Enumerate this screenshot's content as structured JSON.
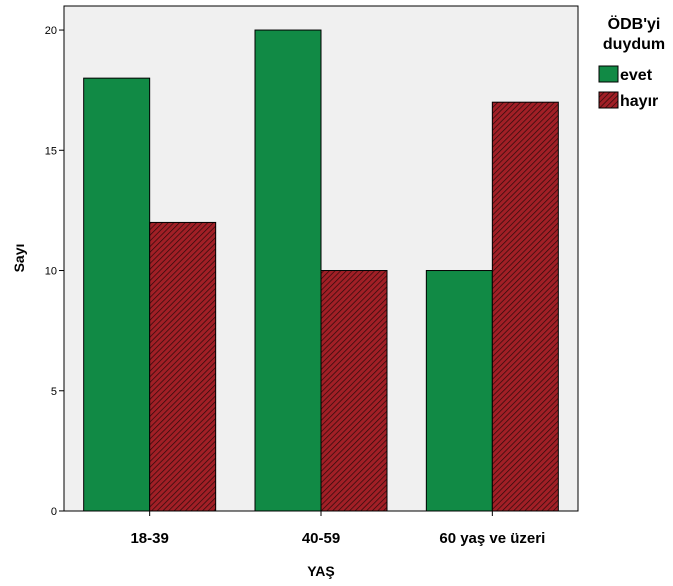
{
  "chart_data": {
    "type": "bar",
    "categories": [
      "18-39",
      "40-59",
      "60 yaş ve üzeri"
    ],
    "series": [
      {
        "name": "evet",
        "values": [
          18,
          20,
          10
        ],
        "color": "#118a45",
        "pattern": "solid"
      },
      {
        "name": "hayır",
        "values": [
          12,
          10,
          17
        ],
        "color": "#a11f26",
        "pattern": "diagonal-hatch"
      }
    ],
    "xlabel": "YAŞ",
    "ylabel": "Sayı",
    "ylim": [
      0,
      21
    ],
    "yticks": [
      0,
      5,
      10,
      15,
      20
    ],
    "legend_title_lines": [
      "ÖDB'yi",
      "duydum"
    ],
    "legend_position": "top-right-outside",
    "plot_background": "#f0f0f0",
    "grid": false
  }
}
